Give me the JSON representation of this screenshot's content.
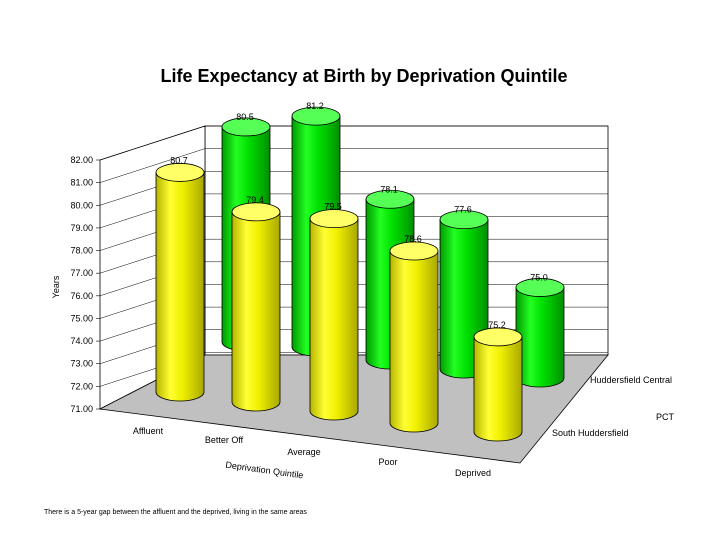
{
  "chart_data": {
    "type": "bar",
    "subtype": "3d-cylinder",
    "title": "Life Expectancy at Birth by Deprivation Quintile",
    "ylabel": "Years",
    "xlabel": "Deprivation Quintile",
    "zlabel": "PCT",
    "ylim": [
      71,
      82
    ],
    "yticks": [
      "71.00",
      "72.00",
      "73.00",
      "74.00",
      "75.00",
      "76.00",
      "77.00",
      "78.00",
      "79.00",
      "80.00",
      "81.00",
      "82.00"
    ],
    "categories": [
      "Affluent",
      "Better Off",
      "Average",
      "Poor",
      "Deprived"
    ],
    "series": [
      {
        "name": "South Huddersfield",
        "color": "#f2f200",
        "values": [
          80.7,
          79.4,
          79.5,
          78.6,
          75.2
        ],
        "labels": [
          "80.7",
          "79.4",
          "79.5",
          "78.6",
          "75.2"
        ]
      },
      {
        "name": "Huddersfield Central",
        "color": "#00dd00",
        "values": [
          80.5,
          81.2,
          78.1,
          77.6,
          75.0
        ],
        "labels": [
          "80.5",
          "81.2",
          "78.1",
          "77.6",
          "75.0"
        ]
      }
    ],
    "grid": true,
    "footnote": "There is a 5-year gap between the affluent and the deprived, living in the same areas"
  }
}
